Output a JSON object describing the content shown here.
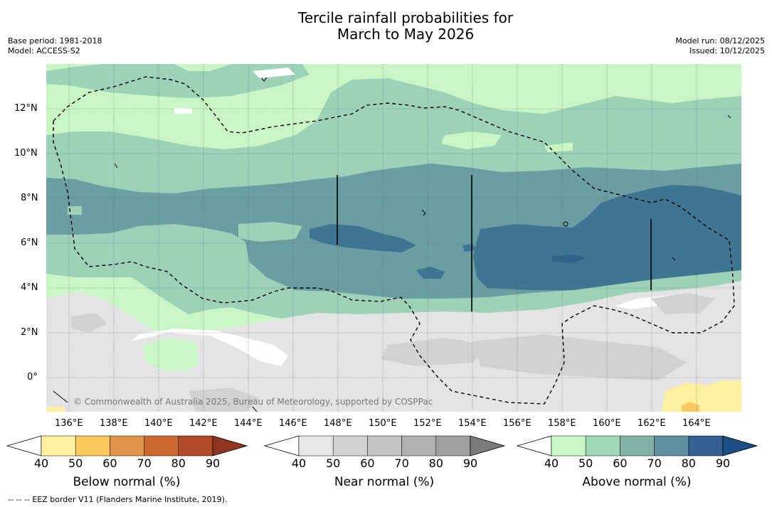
{
  "header": {
    "title_line1": "Tercile rainfall probabilities for",
    "title_line2": "March to May 2026",
    "base_period": "Base period: 1981-2018",
    "model": "Model: ACCESS-S2",
    "model_run": "Model run: 08/12/2025",
    "issued": "Issued: 10/12/2025"
  },
  "map": {
    "lat_labels": [
      "12°N",
      "10°N",
      "8°N",
      "6°N",
      "4°N",
      "2°N",
      "0°"
    ],
    "lon_labels": [
      "136°E",
      "138°E",
      "140°E",
      "142°E",
      "144°E",
      "146°E",
      "148°E",
      "150°E",
      "152°E",
      "154°E",
      "156°E",
      "158°E",
      "160°E",
      "162°E",
      "164°E"
    ],
    "attribution": "© Commonwealth of Australia 2025, Bureau of Meteorology, supported by COSPPac",
    "colors": {
      "above_1": "#c8f7c5",
      "above_2": "#9dd1b8",
      "above_3": "#6a9ea3",
      "above_4": "#3e7593",
      "near_1": "#e4e4e4",
      "near_2": "#d2d2d2",
      "below_1": "#fff0a0",
      "below_2": "#fcc860"
    }
  },
  "colorbars": [
    {
      "label": "Below normal (%)",
      "ticks": [
        "40",
        "50",
        "60",
        "70",
        "80",
        "90"
      ],
      "colors": [
        "#ffffff",
        "#fff0a0",
        "#fdc95e",
        "#e1944a",
        "#ce6632",
        "#b04a28",
        "#8e3421"
      ]
    },
    {
      "label": "Near normal (%)",
      "ticks": [
        "40",
        "50",
        "60",
        "70",
        "80",
        "90"
      ],
      "colors": [
        "#ffffff",
        "#e6e6e6",
        "#d3d3d3",
        "#c3c3c3",
        "#b1b1b1",
        "#a0a0a0",
        "#7b7b7b"
      ]
    },
    {
      "label": "Above normal (%)",
      "ticks": [
        "40",
        "50",
        "60",
        "70",
        "80",
        "90"
      ],
      "colors": [
        "#ffffff",
        "#c8f7c5",
        "#a0d9b7",
        "#80b2a6",
        "#5c8fa0",
        "#335f92",
        "#194d83"
      ]
    }
  ],
  "footer": {
    "legend_symbol": "--  --  --",
    "legend_text": "EEZ border V11 (Flanders Marine Institute, 2019)."
  }
}
